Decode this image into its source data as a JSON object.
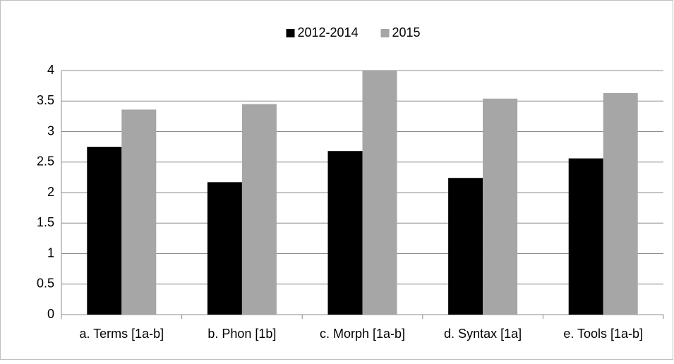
{
  "chart_data": {
    "type": "bar",
    "categories": [
      "a.  Terms [1a-b]",
      "b. Phon [1b]",
      "c. Morph [1a-b]",
      "d. Syntax [1a]",
      "e. Tools [1a-b]"
    ],
    "series": [
      {
        "name": "2012-2014",
        "color": "#000000",
        "values": [
          2.75,
          2.17,
          2.68,
          2.24,
          2.56
        ]
      },
      {
        "name": "2015",
        "color": "#a6a6a6",
        "values": [
          3.36,
          3.45,
          4.0,
          3.54,
          3.63
        ]
      }
    ],
    "ylim": [
      0,
      4
    ],
    "yticks": [
      0,
      0.5,
      1,
      1.5,
      2,
      2.5,
      3,
      3.5,
      4
    ],
    "grid": true,
    "legend": "top"
  }
}
